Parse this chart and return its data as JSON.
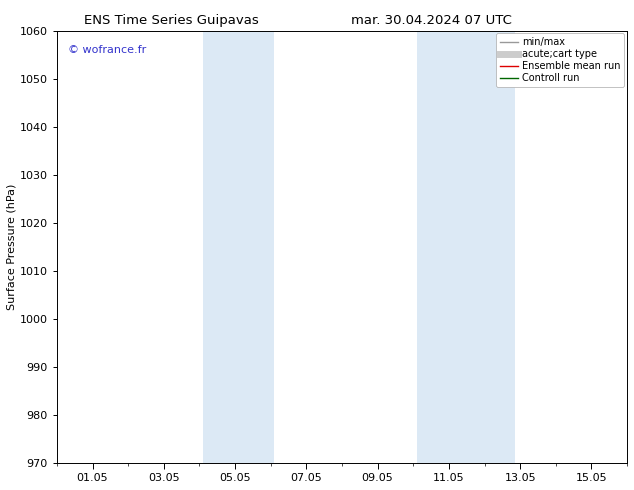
{
  "title_left": "ENS Time Series Guipavas",
  "title_right": "mar. 30.04.2024 07 UTC",
  "ylabel": "Surface Pressure (hPa)",
  "ylim": [
    970,
    1060
  ],
  "yticks": [
    970,
    980,
    990,
    1000,
    1010,
    1020,
    1030,
    1040,
    1050,
    1060
  ],
  "xtick_labels": [
    "01.05",
    "03.05",
    "05.05",
    "07.05",
    "09.05",
    "11.05",
    "13.05",
    "15.05"
  ],
  "xtick_positions": [
    1,
    3,
    5,
    7,
    9,
    11,
    13,
    15
  ],
  "xminor_positions": [
    0,
    2,
    4,
    6,
    8,
    10,
    12,
    14,
    16
  ],
  "xlim": [
    0.0,
    16.0
  ],
  "shaded_regions": [
    {
      "xmin": 4.1,
      "xmax": 6.1
    },
    {
      "xmin": 10.1,
      "xmax": 12.85
    }
  ],
  "shade_color": "#dce9f5",
  "watermark_text": "© wofrance.fr",
  "watermark_color": "#3333cc",
  "legend_items": [
    {
      "label": "min/max",
      "color": "#999999",
      "lw": 1.0,
      "ls": "-"
    },
    {
      "label": "acute;cart type",
      "color": "#cccccc",
      "lw": 5,
      "ls": "-"
    },
    {
      "label": "Ensemble mean run",
      "color": "#dd0000",
      "lw": 1.0,
      "ls": "-"
    },
    {
      "label": "Controll run",
      "color": "#006600",
      "lw": 1.0,
      "ls": "-"
    }
  ],
  "bg_color": "#ffffff",
  "title_fontsize": 9.5,
  "tick_fontsize": 8,
  "ylabel_fontsize": 8,
  "legend_fontsize": 7,
  "watermark_fontsize": 8
}
